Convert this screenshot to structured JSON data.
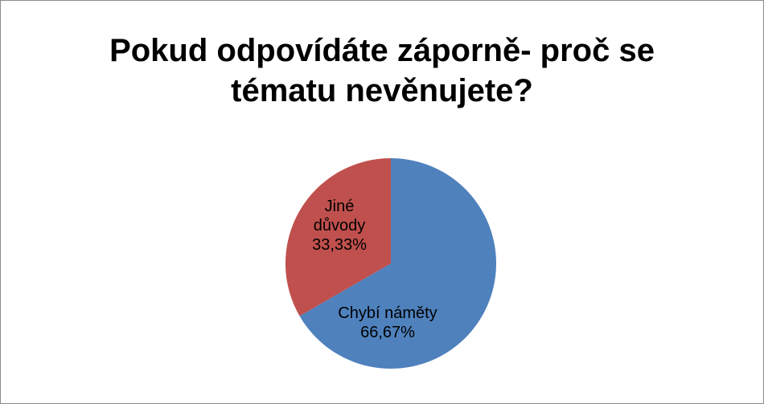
{
  "chart_data": {
    "type": "pie",
    "title": "Pokud odpovídáte záporně- proč se tématu nevěnujete?",
    "categories": [
      "Chybí náměty",
      "Jiné důvody"
    ],
    "values": [
      66.67,
      33.33
    ],
    "value_labels": [
      "66,67%",
      "33,33%"
    ],
    "colors": [
      "#4f81bd",
      "#c0504d"
    ]
  }
}
